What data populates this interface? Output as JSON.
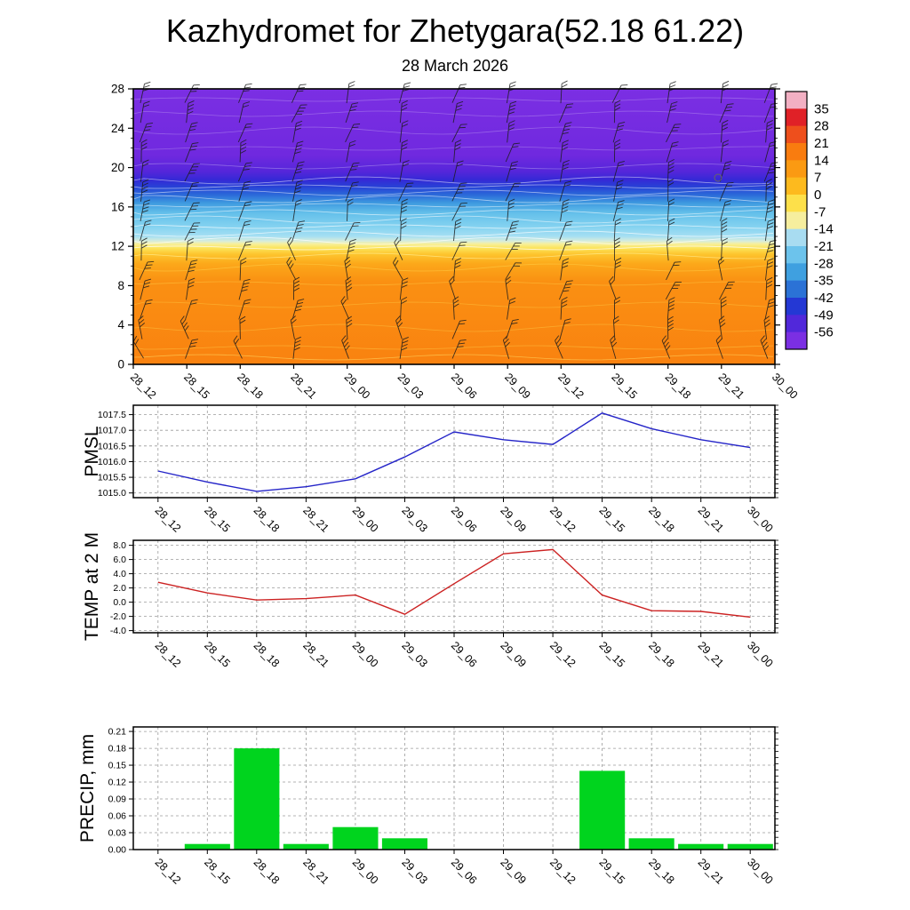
{
  "title": "Kazhydromet for Zhetygara(52.18 61.22)",
  "subtitle": "28 March 2026",
  "times": [
    "28_12",
    "28_15",
    "28_18",
    "28_21",
    "29_00",
    "29_03",
    "29_06",
    "29_09",
    "29_12",
    "29_15",
    "29_18",
    "29_21",
    "30_00"
  ],
  "chart_data": [
    {
      "type": "heatmap",
      "name": "Temperature profile with wind barbs",
      "x": [
        "28_12",
        "28_15",
        "28_18",
        "28_21",
        "29_00",
        "29_03",
        "29_06",
        "29_09",
        "29_12",
        "29_15",
        "29_18",
        "29_21",
        "30_00"
      ],
      "ylim": [
        0,
        28
      ],
      "yticks": [
        "0",
        "4",
        "8",
        "12",
        "16",
        "20",
        "24",
        "28"
      ],
      "colorbar_ticks": [
        "35",
        "28",
        "21",
        "14",
        "7",
        "0",
        "-7",
        "-14",
        "-21",
        "-28",
        "-35",
        "-42",
        "-49",
        "-56"
      ],
      "colorbar_colors": [
        "#f2b0c3",
        "#e02127",
        "#ee4f1c",
        "#f97c0f",
        "#fb9a12",
        "#fdba1e",
        "#fde04a",
        "#f6ee9e",
        "#a8dcf1",
        "#6cc3ec",
        "#3fa0e0",
        "#2b72d6",
        "#2438d4",
        "#5128da",
        "#7b2fe3"
      ],
      "gradient_stops": [
        {
          "pos": 0.0,
          "color": "#7b2fe3"
        },
        {
          "pos": 0.24,
          "color": "#7029df"
        },
        {
          "pos": 0.3,
          "color": "#5526da"
        },
        {
          "pos": 0.33,
          "color": "#3529d6"
        },
        {
          "pos": 0.355,
          "color": "#2741d6"
        },
        {
          "pos": 0.385,
          "color": "#2b6ad9"
        },
        {
          "pos": 0.415,
          "color": "#3f9be0"
        },
        {
          "pos": 0.45,
          "color": "#63bfea"
        },
        {
          "pos": 0.5,
          "color": "#84d2f0"
        },
        {
          "pos": 0.535,
          "color": "#a5dff3"
        },
        {
          "pos": 0.553,
          "color": "#d9edda"
        },
        {
          "pos": 0.563,
          "color": "#f7ef9a"
        },
        {
          "pos": 0.578,
          "color": "#fce45a"
        },
        {
          "pos": 0.6,
          "color": "#fdc52e"
        },
        {
          "pos": 0.635,
          "color": "#fca81a"
        },
        {
          "pos": 0.7,
          "color": "#fa9012"
        },
        {
          "pos": 1.0,
          "color": "#f98210"
        }
      ]
    },
    {
      "type": "line",
      "name": "PMSL",
      "color": "#2424c8",
      "x": [
        "28_12",
        "28_15",
        "28_18",
        "28_21",
        "29_00",
        "29_03",
        "29_06",
        "29_09",
        "29_12",
        "29_15",
        "29_18",
        "29_21",
        "30_00"
      ],
      "values": [
        1015.7,
        1015.35,
        1015.05,
        1015.2,
        1015.45,
        1016.15,
        1016.95,
        1016.7,
        1016.55,
        1017.55,
        1017.05,
        1016.7,
        1016.45
      ],
      "yticks": [
        "1017.5",
        "1017.0",
        "1016.5",
        "1016.0",
        "1015.5",
        "1015.0"
      ],
      "ylim": [
        1014.85,
        1017.8
      ]
    },
    {
      "type": "line",
      "name": "TEMP at 2 M",
      "color": "#cc2222",
      "x": [
        "28_12",
        "28_15",
        "28_18",
        "28_21",
        "29_00",
        "29_03",
        "29_06",
        "29_09",
        "29_12",
        "29_15",
        "29_18",
        "29_21",
        "30_00"
      ],
      "values": [
        2.8,
        1.3,
        0.3,
        0.5,
        1.0,
        -1.7,
        2.6,
        6.8,
        7.4,
        1.0,
        -1.2,
        -1.3,
        -2.1
      ],
      "yticks": [
        "8.0",
        "6.0",
        "4.0",
        "2.0",
        "0.0",
        "-2.0",
        "-4.0"
      ],
      "ylim": [
        -4.3,
        8.7
      ]
    },
    {
      "type": "bar",
      "name": "PRECIP, mm",
      "color": "#00d41e",
      "x": [
        "28_12",
        "28_15",
        "28_18",
        "28_21",
        "29_00",
        "29_03",
        "29_06",
        "29_09",
        "29_12",
        "29_15",
        "29_18",
        "29_21",
        "30_00"
      ],
      "values": [
        0,
        0.01,
        0.18,
        0.01,
        0.04,
        0.02,
        0,
        0,
        0,
        0.14,
        0.02,
        0.01,
        0.01
      ],
      "yticks": [
        "0.21",
        "0.18",
        "0.15",
        "0.12",
        "0.09",
        "0.06",
        "0.03",
        "0.00"
      ],
      "ylim": [
        0,
        0.218
      ]
    }
  ]
}
